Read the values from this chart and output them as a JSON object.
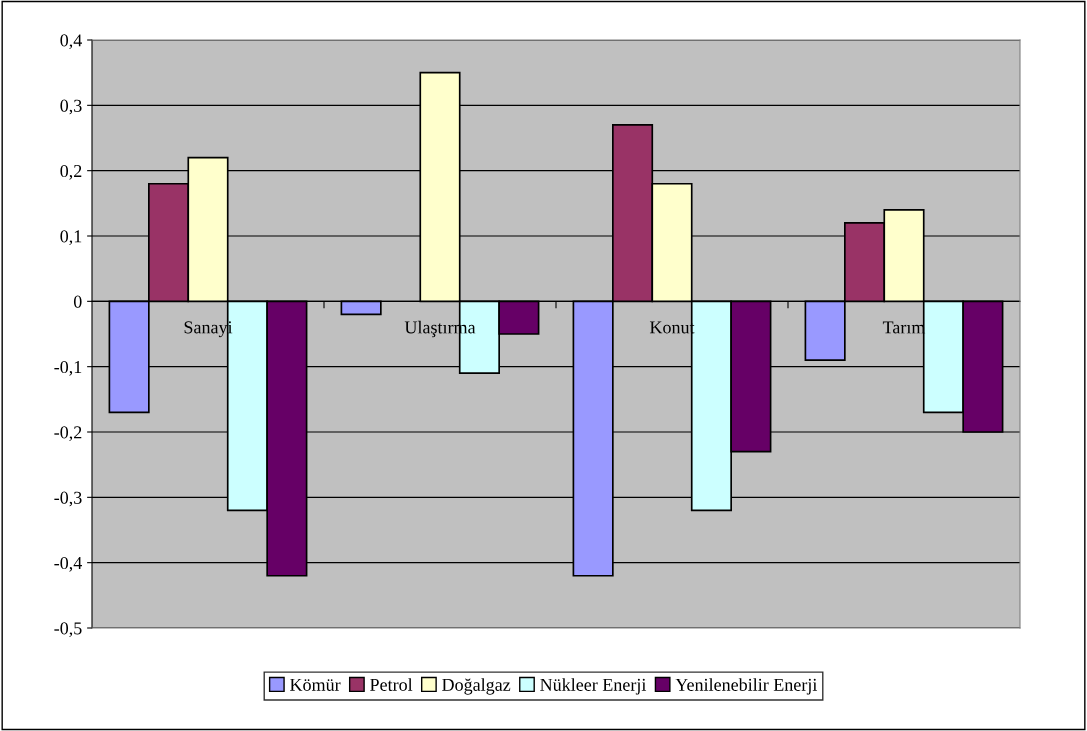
{
  "chart_data": {
    "type": "bar",
    "categories": [
      "Sanayi",
      "Ulaştırma",
      "Konut",
      "Tarım"
    ],
    "series": [
      {
        "name": "Kömür",
        "color": "#9999ff",
        "values": [
          -0.17,
          -0.02,
          -0.42,
          -0.09
        ]
      },
      {
        "name": "Petrol",
        "color": "#993366",
        "values": [
          0.18,
          0,
          0.27,
          0.12
        ]
      },
      {
        "name": "Doğalgaz",
        "color": "#ffffcc",
        "values": [
          0.22,
          0.35,
          0.18,
          0.14
        ]
      },
      {
        "name": "Nükleer Enerji",
        "color": "#ccffff",
        "values": [
          -0.32,
          -0.11,
          -0.32,
          -0.17
        ]
      },
      {
        "name": "Yenilenebilir Enerji",
        "color": "#660066",
        "values": [
          -0.42,
          -0.05,
          -0.23,
          -0.2
        ]
      }
    ],
    "ylim": [
      -0.5,
      0.4
    ],
    "yticks": [
      {
        "value": -0.5,
        "label": "-0,5"
      },
      {
        "value": -0.4,
        "label": "-0,4"
      },
      {
        "value": -0.3,
        "label": "-0,3"
      },
      {
        "value": -0.2,
        "label": "-0,2"
      },
      {
        "value": -0.1,
        "label": "-0,1"
      },
      {
        "value": 0,
        "label": "0"
      },
      {
        "value": 0.1,
        "label": "0,1"
      },
      {
        "value": 0.2,
        "label": "0,2"
      },
      {
        "value": 0.3,
        "label": "0,3"
      },
      {
        "value": 0.4,
        "label": "0,4"
      }
    ],
    "grid": "y",
    "legend": "bottom"
  }
}
